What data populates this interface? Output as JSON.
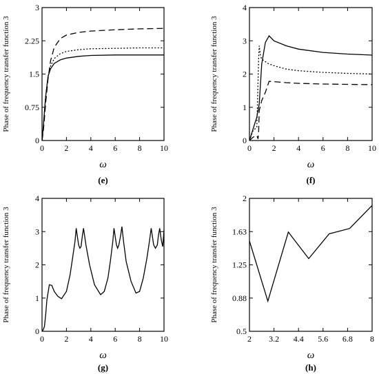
{
  "chart_data": [
    {
      "id": "e",
      "type": "line",
      "caption": "(e)",
      "xlabel": "ω",
      "ylabel": "Phase of frequency transfer function 3",
      "xlim": [
        0,
        10
      ],
      "ylim": [
        0,
        3
      ],
      "xticks": [
        "0",
        "2",
        "4",
        "6",
        "8",
        "10"
      ],
      "yticks": [
        "0",
        "0.75",
        "1.5",
        "2.25",
        "3"
      ],
      "grid": false,
      "series": [
        {
          "style": "solid",
          "x": [
            0,
            0.1,
            0.2,
            0.3,
            0.5,
            0.7,
            1,
            1.5,
            2,
            3,
            4,
            6,
            8,
            10
          ],
          "y": [
            0,
            0.3,
            0.65,
            1.0,
            1.45,
            1.62,
            1.74,
            1.82,
            1.86,
            1.9,
            1.92,
            1.93,
            1.93,
            1.93
          ]
        },
        {
          "style": "dotted",
          "x": [
            0,
            0.1,
            0.2,
            0.3,
            0.5,
            0.7,
            1,
            1.5,
            2,
            3,
            4,
            6,
            8,
            10
          ],
          "y": [
            0,
            0.3,
            0.65,
            1.0,
            1.45,
            1.68,
            1.85,
            1.96,
            2.01,
            2.05,
            2.07,
            2.08,
            2.09,
            2.09
          ]
        },
        {
          "style": "dashed",
          "x": [
            0,
            0.1,
            0.2,
            0.3,
            0.5,
            0.7,
            1,
            1.5,
            2,
            3,
            4,
            6,
            8,
            10
          ],
          "y": [
            0,
            0.2,
            0.5,
            0.85,
            1.4,
            1.8,
            2.1,
            2.3,
            2.38,
            2.44,
            2.47,
            2.5,
            2.52,
            2.53
          ]
        }
      ]
    },
    {
      "id": "f",
      "type": "line",
      "caption": "(f)",
      "xlabel": "ω",
      "ylabel": "Phase of frequency transfer function 3",
      "xlim": [
        0,
        10
      ],
      "ylim": [
        0,
        4
      ],
      "xticks": [
        "0",
        "2",
        "4",
        "6",
        "8",
        "10"
      ],
      "yticks": [
        "0",
        "1",
        "2",
        "3",
        "4"
      ],
      "grid": false,
      "series": [
        {
          "style": "solid",
          "x": [
            0,
            0.3,
            0.6,
            0.8,
            1.0,
            1.3,
            1.6,
            2,
            3,
            4,
            6,
            8,
            10
          ],
          "y": [
            0,
            0.35,
            0.7,
            1.1,
            2.3,
            2.95,
            3.15,
            3.0,
            2.85,
            2.75,
            2.65,
            2.6,
            2.57
          ]
        },
        {
          "style": "dotted",
          "x": [
            0,
            0.3,
            0.6,
            0.75,
            0.8,
            0.9,
            1.0,
            1.5,
            2,
            3,
            4,
            6,
            8,
            10
          ],
          "y": [
            0,
            0.3,
            0.4,
            2.5,
            2.85,
            2.55,
            2.45,
            2.32,
            2.25,
            2.15,
            2.1,
            2.05,
            2.02,
            2.0
          ]
        },
        {
          "style": "dashed",
          "x": [
            0,
            0.3,
            0.6,
            0.7,
            0.75,
            0.8,
            1.0,
            1.3,
            1.6,
            2,
            3,
            4,
            6,
            8,
            10
          ],
          "y": [
            0,
            0.1,
            0.15,
            0.05,
            0.3,
            0.9,
            1.2,
            1.45,
            1.78,
            1.77,
            1.74,
            1.72,
            1.7,
            1.69,
            1.68
          ]
        }
      ]
    },
    {
      "id": "g",
      "type": "line",
      "caption": "(g)",
      "xlabel": "ω",
      "ylabel": "Phase of frequency transfer function 3",
      "xlim": [
        0,
        10
      ],
      "ylim": [
        0,
        4
      ],
      "xticks": [
        "0",
        "2",
        "4",
        "6",
        "8",
        "10"
      ],
      "yticks": [
        "0",
        "1",
        "2",
        "3",
        "4"
      ],
      "grid": false,
      "series": [
        {
          "style": "solid",
          "x": [
            0,
            0.1,
            0.2,
            0.3,
            0.4,
            0.6,
            0.8,
            1.0,
            1.3,
            1.6,
            2.0,
            2.3,
            2.5,
            2.7,
            2.8,
            2.9,
            3.0,
            3.1,
            3.2,
            3.3,
            3.4,
            3.6,
            3.9,
            4.3,
            4.8,
            5.1,
            5.4,
            5.6,
            5.8,
            5.9,
            6.0,
            6.1,
            6.2,
            6.3,
            6.45,
            6.55,
            6.7,
            6.9,
            7.3,
            7.7,
            8.0,
            8.3,
            8.6,
            8.8,
            8.95,
            9.05,
            9.15,
            9.3,
            9.45,
            9.55,
            9.65,
            9.72,
            9.8,
            9.9,
            10
          ],
          "y": [
            0,
            0.05,
            0.15,
            0.5,
            0.95,
            1.4,
            1.38,
            1.2,
            1.05,
            0.98,
            1.2,
            1.7,
            2.2,
            2.7,
            3.1,
            2.85,
            2.6,
            2.5,
            2.55,
            2.85,
            3.1,
            2.6,
            2.0,
            1.4,
            1.1,
            1.2,
            1.6,
            2.1,
            2.7,
            3.1,
            2.85,
            2.6,
            2.5,
            2.6,
            2.9,
            3.15,
            2.65,
            2.1,
            1.5,
            1.15,
            1.2,
            1.6,
            2.2,
            2.7,
            3.1,
            2.85,
            2.6,
            2.5,
            2.6,
            2.9,
            3.1,
            2.9,
            2.7,
            2.55,
            3.05
          ]
        }
      ]
    },
    {
      "id": "h",
      "type": "line",
      "caption": "(h)",
      "xlabel": "ω",
      "ylabel": "Phase of frequency transfer function 3",
      "xlim": [
        2,
        8
      ],
      "ylim": [
        0.5,
        2
      ],
      "xticks": [
        "2",
        "3.2",
        "4.4",
        "5.6",
        "6.8",
        "8"
      ],
      "yticks": [
        "0.5",
        "0.88",
        "1.25",
        "1.63",
        "2"
      ],
      "grid": false,
      "series": [
        {
          "style": "solid",
          "x": [
            2,
            2.9,
            3.9,
            4.9,
            5.9,
            6.9,
            8
          ],
          "y": [
            1.52,
            0.84,
            1.62,
            1.32,
            1.6,
            1.66,
            1.92
          ]
        }
      ]
    }
  ]
}
